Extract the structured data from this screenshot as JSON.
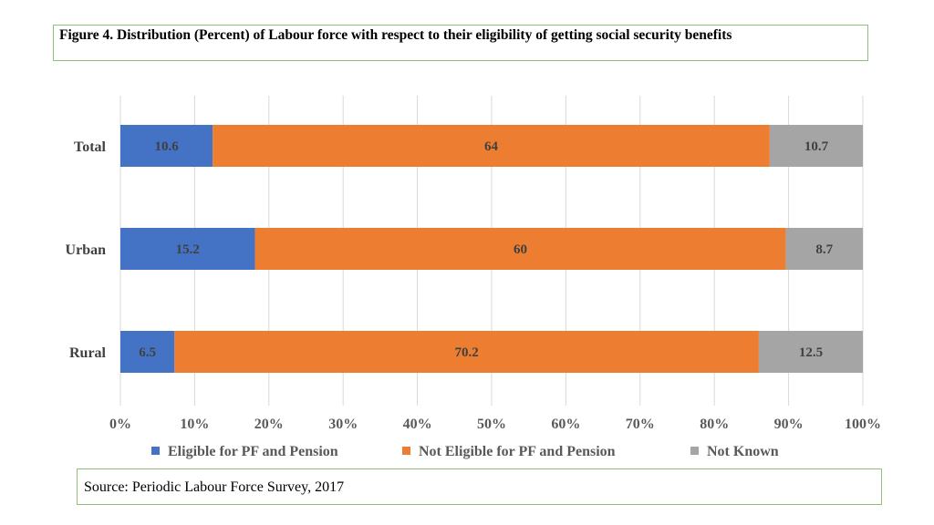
{
  "header": {
    "title": "Figure 4. Distribution (Percent) of  Labour force with respect to their eligibility of getting social security benefits"
  },
  "footer": {
    "source": "Source: Periodic Labour Force Survey, 2017"
  },
  "chart_data": {
    "type": "bar",
    "orientation": "horizontal",
    "stacked": "percent",
    "categories": [
      "Total",
      "Urban",
      "Rural"
    ],
    "series": [
      {
        "name": "Eligible for PF and Pension",
        "values": [
          10.6,
          15.2,
          6.5
        ],
        "color": "#4472c4"
      },
      {
        "name": "Not Eligible for PF and Pension",
        "values": [
          64,
          60,
          70.2
        ],
        "color": "#ed7d31"
      },
      {
        "name": "Not Known",
        "values": [
          10.7,
          8.7,
          12.5
        ],
        "color": "#a5a5a5"
      }
    ],
    "xticks": [
      "0%",
      "10%",
      "20%",
      "30%",
      "40%",
      "50%",
      "60%",
      "70%",
      "80%",
      "90%",
      "100%"
    ],
    "xlim": [
      0,
      100
    ],
    "grid": true,
    "legend_position": "bottom"
  }
}
